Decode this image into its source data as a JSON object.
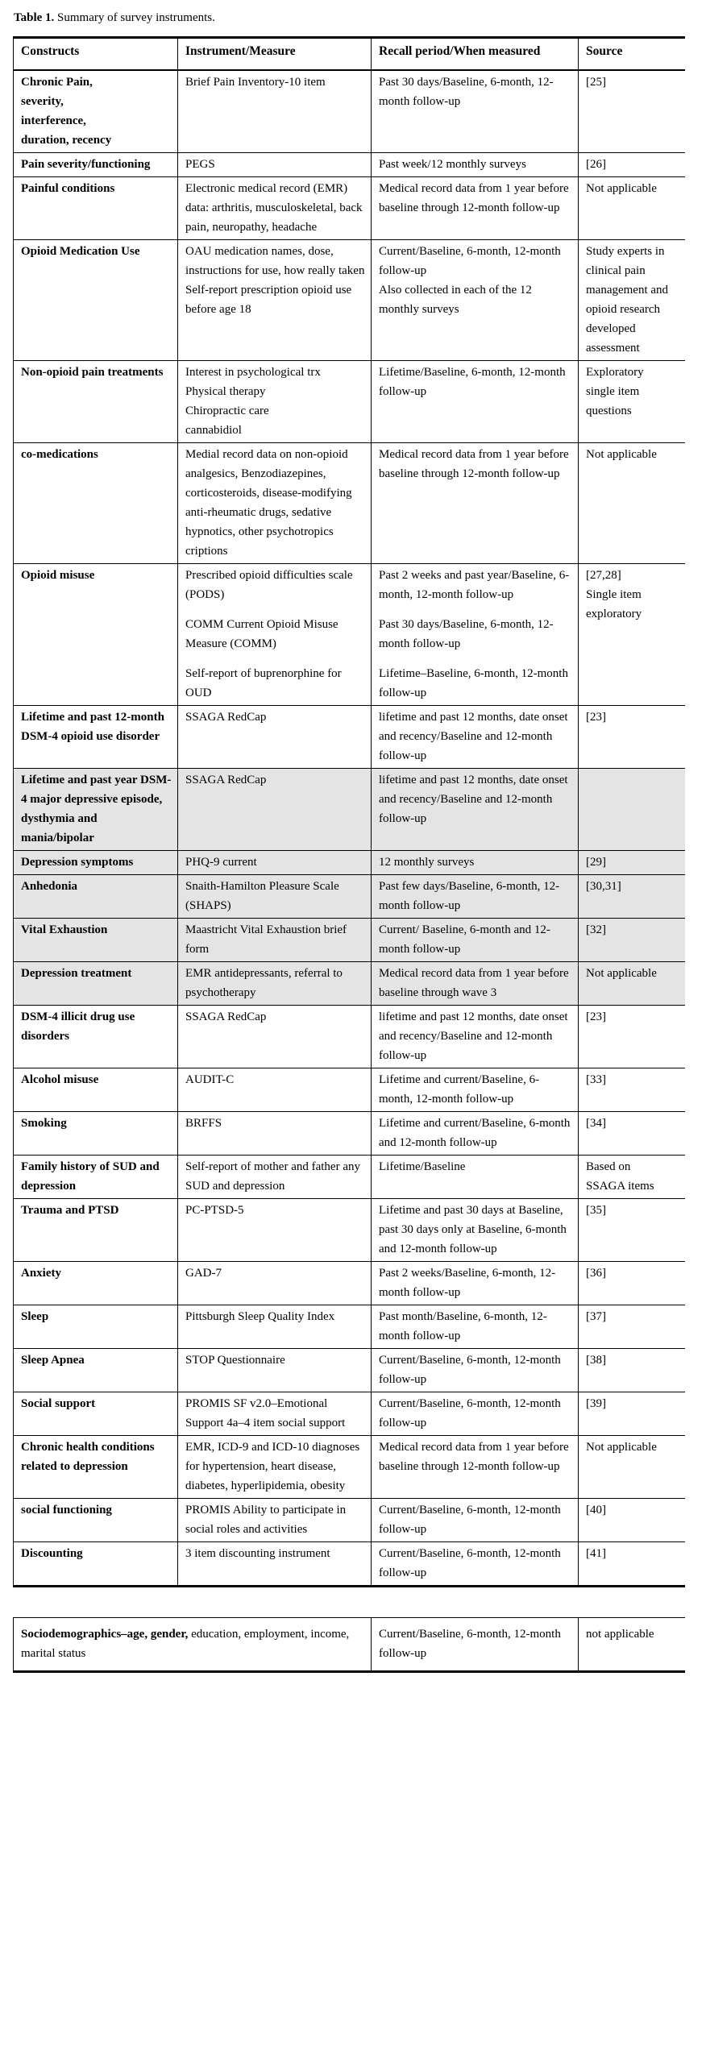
{
  "caption": {
    "label": "Table 1.",
    "text": " Summary of survey instruments."
  },
  "table": {
    "headers": [
      "Constructs",
      "Instrument/Measure",
      "Recall period/When measured",
      "Source"
    ],
    "rows": [
      {
        "shaded": false,
        "construct": [
          "Chronic Pain,\nseverity,\ninterference,\nduration, recency"
        ],
        "instrument": [
          "Brief Pain Inventory-10 item"
        ],
        "recall": [
          "Past 30 days/Baseline, 6-month, 12-month follow-up"
        ],
        "source": [
          "[25]"
        ]
      },
      {
        "shaded": false,
        "construct": [
          "Pain severity/functioning"
        ],
        "instrument": [
          "PEGS"
        ],
        "recall": [
          "Past week/12 monthly surveys"
        ],
        "source": [
          "[26]"
        ]
      },
      {
        "shaded": false,
        "construct": [
          "Painful conditions"
        ],
        "instrument": [
          "Electronic medical record (EMR) data: arthritis, musculoskeletal, back pain, neuropathy, headache"
        ],
        "recall": [
          "Medical record data from 1 year before baseline through 12-month follow-up"
        ],
        "source": [
          "Not applicable"
        ]
      },
      {
        "shaded": false,
        "construct": [
          "Opioid Medication Use"
        ],
        "instrument": [
          "OAU medication names, dose, instructions for use, how really taken\nSelf-report prescription opioid use before age 18"
        ],
        "recall": [
          "Current/Baseline, 6-month, 12-month follow-up\nAlso collected in each of the 12 monthly surveys"
        ],
        "source": [
          "Study experts in clinical pain management and opioid research developed assessment"
        ]
      },
      {
        "shaded": false,
        "construct": [
          "Non-opioid pain treatments"
        ],
        "instrument": [
          "Interest in psychological trx\nPhysical therapy\nChiropractic care\ncannabidiol"
        ],
        "recall": [
          "Lifetime/Baseline, 6-month, 12-month follow-up"
        ],
        "source": [
          "Exploratory\nsingle item\nquestions"
        ]
      },
      {
        "shaded": false,
        "construct": [
          "co-medications"
        ],
        "instrument": [
          "Medial record data on non-opioid analgesics, Benzodiazepines, corticosteroids, disease-modifying anti-rheumatic drugs, sedative hypnotics, other psychotropics criptions"
        ],
        "recall": [
          "Medical record data from 1 year before baseline through 12-month follow-up"
        ],
        "source": [
          "Not applicable"
        ]
      },
      {
        "shaded": false,
        "construct": [
          "Opioid misuse"
        ],
        "instrument": [
          "Prescribed opioid difficulties scale (PODS)",
          "COMM Current Opioid Misuse Measure (COMM)",
          "Self-report of buprenorphine for OUD"
        ],
        "recall": [
          "Past 2 weeks and past year/Baseline, 6-month, 12-month follow-up",
          "Past 30 days/Baseline, 6-month, 12-month follow-up",
          "Lifetime–Baseline, 6-month, 12-month follow-up"
        ],
        "source": [
          "[27,28]\nSingle item\nexploratory"
        ]
      },
      {
        "shaded": false,
        "construct": [
          "Lifetime and past 12-month DSM-4 opioid use disorder"
        ],
        "instrument": [
          "SSAGA RedCap"
        ],
        "recall": [
          "lifetime and past 12 months, date onset and recency/Baseline and 12-month follow-up"
        ],
        "source": [
          "[23]"
        ]
      },
      {
        "shaded": true,
        "construct": [
          "Lifetime and past year DSM-4 major depressive episode, dysthymia and mania/bipolar"
        ],
        "instrument": [
          "SSAGA RedCap"
        ],
        "recall": [
          "lifetime and past 12 months, date onset and recency/Baseline and 12-month follow-up"
        ],
        "source": [
          ""
        ]
      },
      {
        "shaded": true,
        "construct": [
          "Depression symptoms"
        ],
        "instrument": [
          "PHQ-9 current"
        ],
        "recall": [
          "12 monthly surveys"
        ],
        "source": [
          "[29]"
        ]
      },
      {
        "shaded": true,
        "construct": [
          "Anhedonia"
        ],
        "instrument": [
          "Snaith-Hamilton Pleasure Scale (SHAPS)"
        ],
        "recall": [
          "Past few days/Baseline, 6-month, 12-month follow-up"
        ],
        "source": [
          "[30,31]"
        ]
      },
      {
        "shaded": true,
        "construct": [
          "Vital Exhaustion"
        ],
        "instrument": [
          "Maastricht Vital Exhaustion brief form"
        ],
        "recall": [
          "Current/ Baseline, 6-month and 12-month follow-up"
        ],
        "source": [
          "[32]"
        ]
      },
      {
        "shaded": true,
        "construct": [
          "Depression treatment"
        ],
        "instrument": [
          "EMR antidepressants, referral to psychotherapy"
        ],
        "recall": [
          "Medical record data from 1 year before baseline through wave 3"
        ],
        "source": [
          "Not applicable"
        ]
      },
      {
        "shaded": false,
        "construct": [
          "DSM-4 illicit drug use disorders"
        ],
        "instrument": [
          "SSAGA RedCap"
        ],
        "recall": [
          "lifetime and past 12 months, date onset and recency/Baseline and 12-month follow-up"
        ],
        "source": [
          "[23]"
        ]
      },
      {
        "shaded": false,
        "construct": [
          "Alcohol misuse"
        ],
        "instrument": [
          "AUDIT-C"
        ],
        "recall": [
          "Lifetime and current/Baseline, 6-month, 12-month follow-up"
        ],
        "source": [
          "[33]"
        ]
      },
      {
        "shaded": false,
        "construct": [
          "Smoking"
        ],
        "instrument": [
          "BRFFS"
        ],
        "recall": [
          "Lifetime and current/Baseline, 6-month and 12-month follow-up"
        ],
        "source": [
          "[34]"
        ]
      },
      {
        "shaded": false,
        "construct": [
          "Family history of SUD and depression"
        ],
        "instrument": [
          "Self-report of mother and father any SUD and depression"
        ],
        "recall": [
          "Lifetime/Baseline"
        ],
        "source": [
          "Based on\nSSAGA items"
        ]
      },
      {
        "shaded": false,
        "construct": [
          "Trauma and PTSD"
        ],
        "instrument": [
          "PC-PTSD-5"
        ],
        "recall": [
          "Lifetime and past 30 days at Baseline, past 30 days only at Baseline, 6-month and 12-month follow-up"
        ],
        "source": [
          "[35]"
        ]
      },
      {
        "shaded": false,
        "construct": [
          "Anxiety"
        ],
        "instrument": [
          "GAD-7"
        ],
        "recall": [
          "Past 2 weeks/Baseline, 6-month, 12-month follow-up"
        ],
        "source": [
          "[36]"
        ]
      },
      {
        "shaded": false,
        "construct": [
          "Sleep"
        ],
        "instrument": [
          "Pittsburgh Sleep Quality Index"
        ],
        "recall": [
          "Past month/Baseline, 6-month, 12-month follow-up"
        ],
        "source": [
          "[37]"
        ]
      },
      {
        "shaded": false,
        "construct": [
          "Sleep Apnea"
        ],
        "instrument": [
          "STOP Questionnaire"
        ],
        "recall": [
          "Current/Baseline, 6-month, 12-month follow-up"
        ],
        "source": [
          "[38]"
        ]
      },
      {
        "shaded": false,
        "construct": [
          "Social support"
        ],
        "instrument": [
          "PROMIS SF v2.0–Emotional Support 4a–4 item social support"
        ],
        "recall": [
          "Current/Baseline, 6-month, 12-month follow-up"
        ],
        "source": [
          "[39]"
        ]
      },
      {
        "shaded": false,
        "construct": [
          "Chronic health conditions related to depression"
        ],
        "instrument": [
          "EMR, ICD-9 and ICD-10 diagnoses for hypertension, heart disease, diabetes, hyperlipidemia, obesity"
        ],
        "recall": [
          "Medical record data from 1 year before baseline through 12-month follow-up"
        ],
        "source": [
          "Not applicable"
        ]
      },
      {
        "shaded": false,
        "construct": [
          "social functioning"
        ],
        "instrument": [
          "PROMIS Ability to participate in social roles and activities"
        ],
        "recall": [
          "Current/Baseline, 6-month, 12-month follow-up"
        ],
        "source": [
          "[40]"
        ]
      },
      {
        "shaded": false,
        "construct": [
          "Discounting"
        ],
        "instrument": [
          "3 item discounting instrument"
        ],
        "recall": [
          "Current/Baseline, 6-month, 12-month follow-up"
        ],
        "source": [
          "[41]"
        ]
      }
    ]
  },
  "footer_row": {
    "construct_bold": "Sociodemographics–age, gender,",
    "construct_rest": " education, employment, income, marital status",
    "recall": "Current/Baseline, 6-month, 12-month follow-up",
    "source": "not applicable"
  },
  "colors": {
    "shaded_row_background": "#e4e4e4",
    "border": "#000000",
    "text": "#000000"
  }
}
